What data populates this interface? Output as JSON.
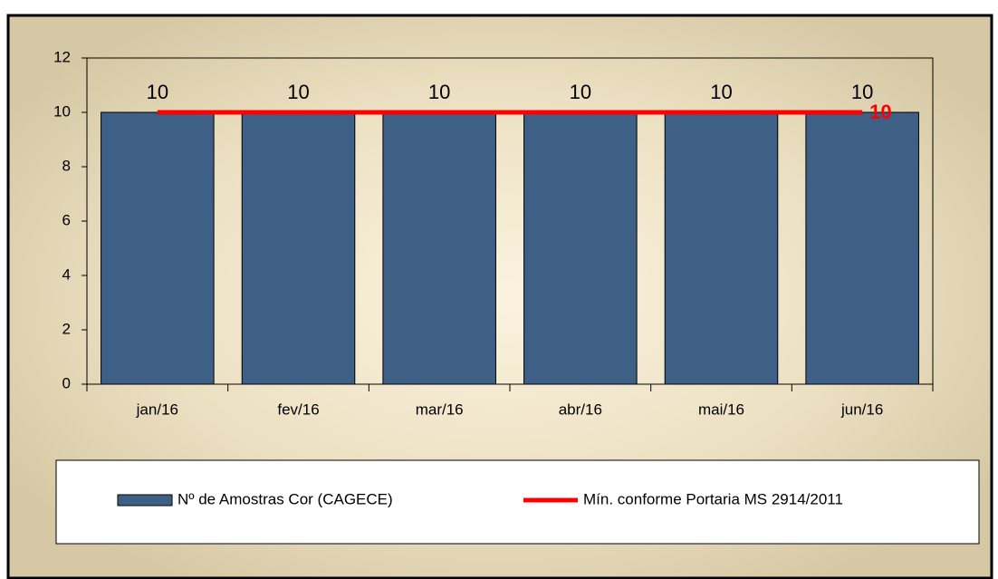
{
  "chart_data": {
    "type": "bar",
    "categories": [
      "jan/16",
      "fev/16",
      "mar/16",
      "abr/16",
      "mai/16",
      "jun/16"
    ],
    "series": [
      {
        "name": "Nº de Amostras Cor (CAGECE)",
        "color": "#3e5f86",
        "type": "bar",
        "values": [
          10,
          10,
          10,
          10,
          10,
          10
        ],
        "data_labels": "all"
      },
      {
        "name": "Mín. conforme Portaria MS 2914/2011",
        "color": "#ff0000",
        "type": "line",
        "values": [
          10,
          10,
          10,
          10,
          10,
          10
        ],
        "data_labels": "last"
      }
    ],
    "ylim": [
      0,
      12
    ],
    "yticks": [
      0,
      2,
      4,
      6,
      8,
      10,
      12
    ],
    "legend": "bottom"
  }
}
